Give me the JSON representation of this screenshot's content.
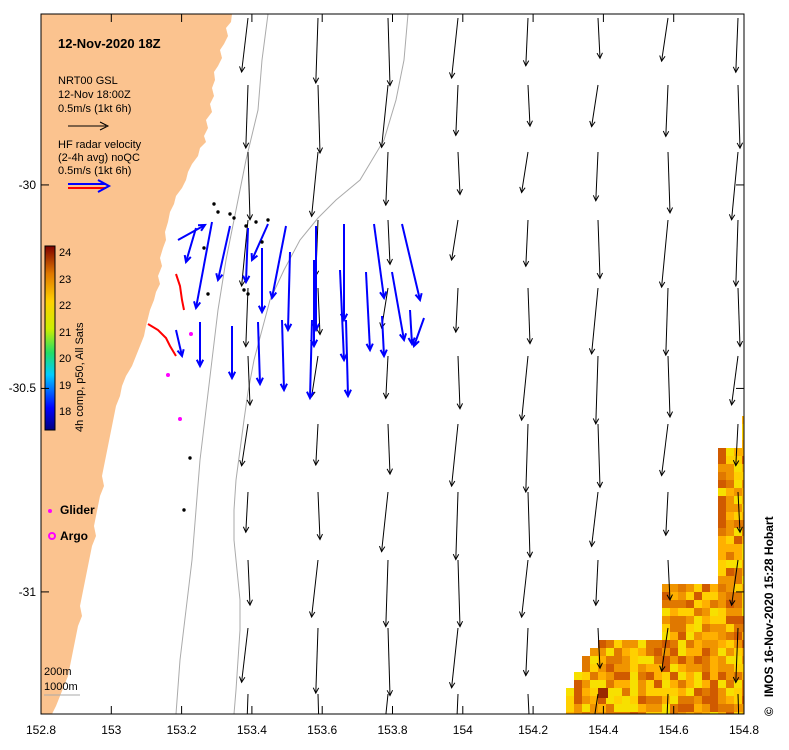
{
  "plot": {
    "title": "12-Nov-2020 18Z",
    "credit": "IMOS 16-Nov-2020 15:28 Hobart",
    "copyright_symbol": "©"
  },
  "legend": {
    "model_line1": "NRT00 GSL",
    "model_line2": "12-Nov 18:00Z",
    "model_scale": "0.5m/s (1kt 6h)",
    "radar_line1": "HF radar velocity",
    "radar_line2": "(2-4h avg) noQC",
    "radar_scale": "0.5m/s (1kt 6h)",
    "glider": "Glider",
    "argo": "Argo",
    "depth_200": "200m",
    "depth_1000": "1000m"
  },
  "colorbar": {
    "title": "4h comp, p50, All Sats",
    "ticks": [
      "24",
      "23",
      "22",
      "21",
      "20",
      "19",
      "18"
    ]
  },
  "axes": {
    "x_ticks": [
      "152.8",
      "153",
      "153.2",
      "153.4",
      "153.6",
      "153.8",
      "154",
      "154.2",
      "154.4",
      "154.6",
      "154.8"
    ],
    "y_ticks": [
      "-30",
      "-30.5",
      "-31"
    ],
    "lon_range": [
      152.8,
      154.8
    ],
    "lat_range": [
      -31.3,
      -29.58
    ]
  },
  "colors": {
    "land": "#fbc38f",
    "radar_vectors": "#0000ff",
    "glider_track": "#ff0000",
    "argo_glider_marker": "#ff00ff",
    "model_vectors": "#000000"
  }
}
